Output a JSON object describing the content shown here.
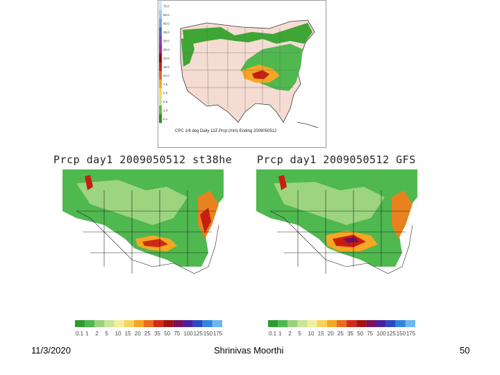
{
  "slide": {
    "date": "11/3/2020",
    "author": "Shrinivas Moorthi",
    "page": "50"
  },
  "top_map": {
    "colorbar_labels": [
      "75.0",
      "50.0",
      "40.0",
      "35.0",
      "30.0",
      "25.0",
      "20.0",
      "15.0",
      "10.0",
      "7.5",
      "5.0",
      "2.5",
      "1.0",
      "0.1"
    ],
    "colorbar_colors": [
      "#c9e6f7",
      "#9ac9ea",
      "#6fa8de",
      "#5566cc",
      "#8a3fbf",
      "#a020a0",
      "#9b0000",
      "#cc1e12",
      "#e8641e",
      "#f5a623",
      "#f5d848",
      "#c7e29a",
      "#66b842",
      "#2e8b1f"
    ],
    "caption": "CPC 1/8 deg Daily 12Z Prcp (mm) Ending 2009050512"
  },
  "panels": [
    {
      "id": "left",
      "title": "Prcp day1 2009050512 st38he"
    },
    {
      "id": "right",
      "title": "Prcp day1 2009050512 GFS"
    }
  ],
  "legend": {
    "colors": [
      "#2e9b2e",
      "#4fb84f",
      "#98d27a",
      "#c9e79b",
      "#f2eea0",
      "#f7d35a",
      "#f5a623",
      "#ee6a1e",
      "#d42a18",
      "#a5120f",
      "#7a0f5e",
      "#4b1fa0",
      "#2b49c6",
      "#2f86de",
      "#6cb7ef"
    ],
    "labels": [
      "0.1",
      "1",
      "2",
      "5",
      "10",
      "15",
      "20",
      "25",
      "35",
      "50",
      "75",
      "100",
      "125",
      "150",
      "175"
    ]
  }
}
